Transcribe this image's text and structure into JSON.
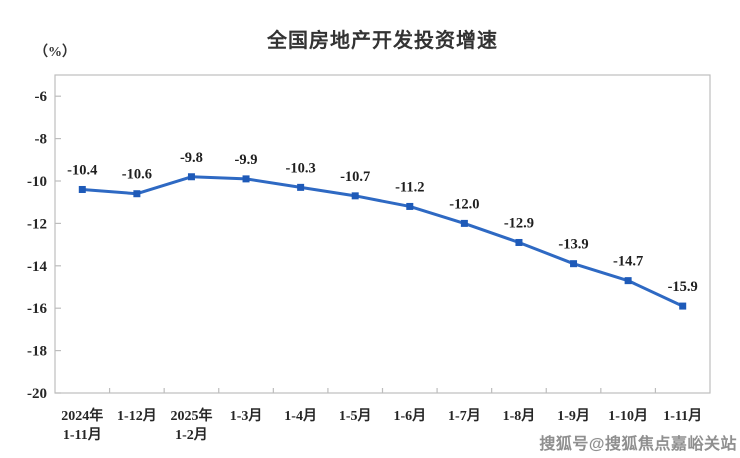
{
  "chart_data": {
    "type": "line",
    "title": "全国房地产开发投资增速",
    "unit_label": "（%）",
    "categories": [
      [
        "2024年",
        "1-11月"
      ],
      [
        "1-12月"
      ],
      [
        "2025年",
        "1-2月"
      ],
      [
        "1-3月"
      ],
      [
        "1-4月"
      ],
      [
        "1-5月"
      ],
      [
        "1-6月"
      ],
      [
        "1-7月"
      ],
      [
        "1-8月"
      ],
      [
        "1-9月"
      ],
      [
        "1-10月"
      ],
      [
        "1-11月"
      ]
    ],
    "values": [
      -10.4,
      -10.6,
      -9.8,
      -9.9,
      -10.3,
      -10.7,
      -11.2,
      -12.0,
      -12.9,
      -13.9,
      -14.7,
      -15.9
    ],
    "value_labels": [
      "-10.4",
      "-10.6",
      "-9.8",
      "-9.9",
      "-10.3",
      "-10.7",
      "-11.2",
      "-12.0",
      "-12.9",
      "-13.9",
      "-14.7",
      "-15.9"
    ],
    "y_ticks": [
      "-6",
      "-8",
      "-10",
      "-12",
      "-14",
      "-16",
      "-18",
      "-20"
    ],
    "y_tick_values": [
      -6,
      -8,
      -10,
      -12,
      -14,
      -16,
      -18,
      -20
    ],
    "ylim": [
      -20,
      -5
    ],
    "grid": false,
    "legend_position": "none",
    "series_color": "#2e69c3",
    "marker_color": "#1e5ab8",
    "data_label_color": "#1f1f1f",
    "axis_line_color": "#bdbdbd",
    "tick_label_color": "#262626"
  },
  "watermark": {
    "text": "搜狐号@搜狐焦点嘉峪关站"
  }
}
